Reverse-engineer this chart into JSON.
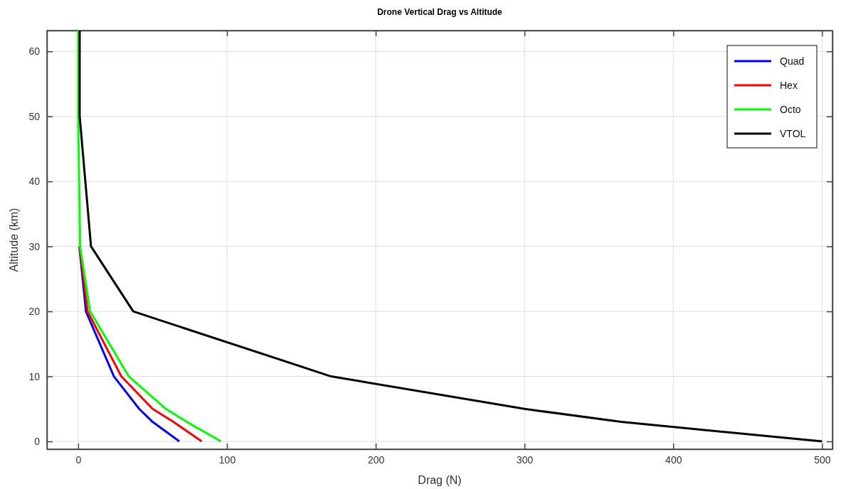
{
  "chart_data": {
    "type": "line",
    "title": "Drone Vertical Drag vs Altitude",
    "xlabel": "Drag (N)",
    "ylabel": "Altitude (km)",
    "xlim": [
      -21,
      507
    ],
    "ylim": [
      -1.2,
      63.2
    ],
    "xticks": [
      0,
      100,
      200,
      300,
      400,
      500
    ],
    "yticks": [
      0,
      10,
      20,
      30,
      40,
      50,
      60
    ],
    "grid": true,
    "legend": "top right",
    "line_style": "solid",
    "marker": "none",
    "series": [
      {
        "name": "Quad",
        "color": "#0000ff",
        "x": [
          68,
          50,
          41,
          24,
          5.2,
          0.8
        ],
        "values": [
          0,
          3,
          5,
          10,
          20,
          30
        ]
      },
      {
        "name": "Hex",
        "color": "#ff0000",
        "x": [
          83,
          64,
          50,
          29,
          6.3,
          1
        ],
        "values": [
          0,
          3,
          5,
          10,
          20,
          30
        ]
      },
      {
        "name": "Octo",
        "color": "#00ff00",
        "x": [
          96,
          73,
          59,
          34,
          8,
          1.3,
          0,
          0
        ],
        "values": [
          0,
          3,
          5,
          10,
          20,
          30,
          50,
          63.2
        ]
      },
      {
        "name": "VTOL",
        "color": "#000000",
        "x": [
          500,
          365,
          300,
          170,
          37,
          8.6,
          1,
          1
        ],
        "values": [
          0,
          3,
          5,
          10,
          20,
          30,
          50,
          63.2
        ]
      }
    ]
  }
}
